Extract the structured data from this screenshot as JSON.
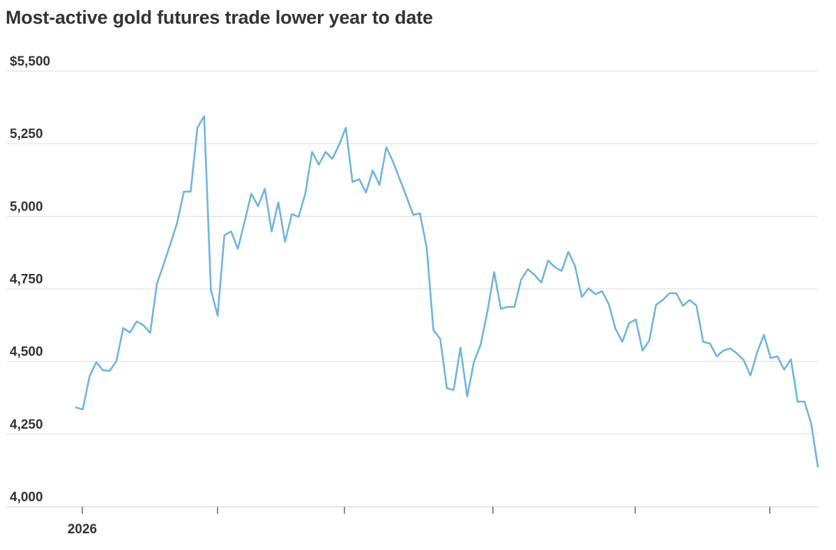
{
  "chart_data": {
    "type": "line",
    "title": "Most-active gold futures trade lower year to date",
    "xlabel": "",
    "ylabel": "",
    "ylim": [
      4000,
      5500
    ],
    "y_ticks": [
      {
        "value": 5500,
        "label": "$5,500"
      },
      {
        "value": 5250,
        "label": "5,250"
      },
      {
        "value": 5000,
        "label": "5,000"
      },
      {
        "value": 4750,
        "label": "4,750"
      },
      {
        "value": 4500,
        "label": "4,500"
      },
      {
        "value": 4250,
        "label": "4,250"
      },
      {
        "value": 4000,
        "label": "4,000"
      }
    ],
    "x_ticks": [
      {
        "x": 1,
        "label": "2026"
      },
      {
        "x": 21,
        "label": ""
      },
      {
        "x": 40,
        "label": ""
      },
      {
        "x": 62,
        "label": ""
      },
      {
        "x": 83,
        "label": ""
      },
      {
        "x": 103,
        "label": ""
      }
    ],
    "x_range": [
      0,
      107
    ],
    "grid": true,
    "legend": "none",
    "colors": {
      "line": "#6fb4de",
      "grid": "#dcdcdc",
      "text": "#333333"
    },
    "series": [
      {
        "values": [
          [
            0,
            4342
          ],
          [
            1,
            4335
          ],
          [
            2,
            4448
          ],
          [
            3,
            4498
          ],
          [
            4,
            4470
          ],
          [
            5,
            4468
          ],
          [
            6,
            4502
          ],
          [
            7,
            4615
          ],
          [
            8,
            4600
          ],
          [
            9,
            4638
          ],
          [
            10,
            4625
          ],
          [
            11,
            4598
          ],
          [
            12,
            4768
          ],
          [
            13,
            4835
          ],
          [
            14,
            4905
          ],
          [
            15,
            4978
          ],
          [
            16,
            5085
          ],
          [
            17,
            5085
          ],
          [
            18,
            5305
          ],
          [
            19,
            5345
          ],
          [
            20,
            4748
          ],
          [
            21,
            4658
          ],
          [
            22,
            4935
          ],
          [
            23,
            4948
          ],
          [
            24,
            4888
          ],
          [
            25,
            4982
          ],
          [
            26,
            5078
          ],
          [
            27,
            5035
          ],
          [
            28,
            5095
          ],
          [
            29,
            4948
          ],
          [
            30,
            5048
          ],
          [
            31,
            4912
          ],
          [
            32,
            5008
          ],
          [
            33,
            4998
          ],
          [
            34,
            5078
          ],
          [
            35,
            5222
          ],
          [
            36,
            5178
          ],
          [
            37,
            5222
          ],
          [
            38,
            5198
          ],
          [
            39,
            5245
          ],
          [
            40,
            5305
          ],
          [
            41,
            5118
          ],
          [
            42,
            5128
          ],
          [
            43,
            5082
          ],
          [
            44,
            5158
          ],
          [
            45,
            5108
          ],
          [
            46,
            5238
          ],
          [
            47,
            5188
          ],
          [
            48,
            5128
          ],
          [
            49,
            5068
          ],
          [
            50,
            5005
          ],
          [
            51,
            5010
          ],
          [
            52,
            4892
          ],
          [
            53,
            4608
          ],
          [
            54,
            4578
          ],
          [
            55,
            4408
          ],
          [
            56,
            4402
          ],
          [
            57,
            4548
          ],
          [
            58,
            4380
          ],
          [
            59,
            4498
          ],
          [
            60,
            4558
          ],
          [
            61,
            4672
          ],
          [
            62,
            4808
          ],
          [
            63,
            4682
          ],
          [
            64,
            4688
          ],
          [
            65,
            4688
          ],
          [
            66,
            4782
          ],
          [
            67,
            4818
          ],
          [
            68,
            4798
          ],
          [
            69,
            4772
          ],
          [
            70,
            4848
          ],
          [
            71,
            4825
          ],
          [
            72,
            4812
          ],
          [
            73,
            4878
          ],
          [
            74,
            4828
          ],
          [
            75,
            4722
          ],
          [
            76,
            4752
          ],
          [
            77,
            4732
          ],
          [
            78,
            4742
          ],
          [
            79,
            4698
          ],
          [
            80,
            4612
          ],
          [
            81,
            4568
          ],
          [
            82,
            4632
          ],
          [
            83,
            4645
          ],
          [
            84,
            4538
          ],
          [
            85,
            4572
          ],
          [
            86,
            4695
          ],
          [
            87,
            4712
          ],
          [
            88,
            4735
          ],
          [
            89,
            4735
          ],
          [
            90,
            4692
          ],
          [
            91,
            4712
          ],
          [
            92,
            4692
          ],
          [
            93,
            4568
          ],
          [
            94,
            4562
          ],
          [
            95,
            4518
          ],
          [
            96,
            4538
          ],
          [
            97,
            4545
          ],
          [
            98,
            4528
          ],
          [
            99,
            4505
          ],
          [
            100,
            4452
          ],
          [
            101,
            4532
          ],
          [
            102,
            4592
          ],
          [
            103,
            4512
          ],
          [
            104,
            4518
          ],
          [
            105,
            4472
          ],
          [
            106,
            4508
          ],
          [
            107,
            4362
          ],
          [
            108,
            4362
          ],
          [
            109,
            4288
          ],
          [
            110,
            4138
          ]
        ]
      }
    ]
  }
}
